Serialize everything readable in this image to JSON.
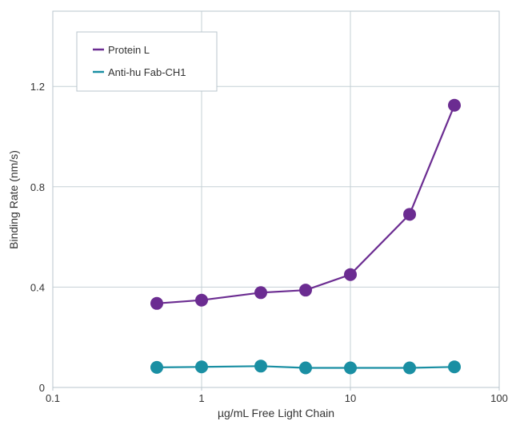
{
  "chart_data": {
    "type": "line",
    "xlabel": "µg/mL Free Light Chain",
    "ylabel": "Binding Rate (nm/s)",
    "x_scale": "log",
    "xlim": [
      0.1,
      100
    ],
    "ylim": [
      0,
      1.5
    ],
    "x_ticks": [
      0.1,
      1,
      10,
      100
    ],
    "x_tick_labels": [
      "0.1",
      "1",
      "10",
      "100"
    ],
    "y_ticks": [
      0,
      0.4,
      0.8,
      1.2
    ],
    "y_tick_labels": [
      "0",
      "0.4",
      "0.8",
      "1.2"
    ],
    "grid": true,
    "legend_position": "top-left",
    "x": [
      0.5,
      1,
      2.5,
      5,
      10,
      25,
      50
    ],
    "series": [
      {
        "name": "Protein L",
        "color": "#6b2c91",
        "values": [
          0.335,
          0.348,
          0.378,
          0.388,
          0.45,
          0.69,
          1.125
        ]
      },
      {
        "name": "Anti-hu Fab-CH1",
        "color": "#1a8fa3",
        "values": [
          0.08,
          0.082,
          0.085,
          0.078,
          0.078,
          0.078,
          0.082
        ]
      }
    ]
  }
}
